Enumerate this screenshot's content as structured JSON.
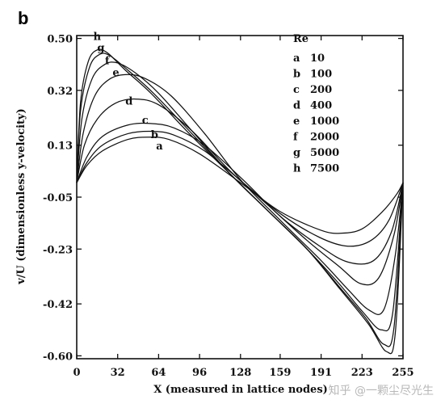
{
  "panel_label": "b",
  "watermark": "知乎 @一颗尘尽光生",
  "chart_data": {
    "type": "line",
    "xlabel": "X (measured in lattice nodes)",
    "ylabel": "v/U (dimensionless y-velocity)",
    "xlim": [
      0,
      255
    ],
    "ylim": [
      -0.61,
      0.51
    ],
    "x_ticks": [
      0,
      32,
      64,
      96,
      128,
      159,
      191,
      223,
      255
    ],
    "y_ticks": [
      0.5,
      0.32,
      0.13,
      -0.05,
      -0.23,
      -0.42,
      -0.6
    ],
    "y_tick_labels": [
      "0.50",
      "0.32",
      "0.13",
      "-0.05",
      "-0.23",
      "-0.42",
      "-0.60"
    ],
    "legend": {
      "title": "Re",
      "entries": [
        {
          "key": "a",
          "value": "10"
        },
        {
          "key": "b",
          "value": "100"
        },
        {
          "key": "c",
          "value": "200"
        },
        {
          "key": "d",
          "value": "400"
        },
        {
          "key": "e",
          "value": "1000"
        },
        {
          "key": "f",
          "value": "2000"
        },
        {
          "key": "g",
          "value": "5000"
        },
        {
          "key": "h",
          "value": "7500"
        }
      ]
    },
    "series": [
      {
        "name": "a",
        "points": [
          [
            0,
            0.0
          ],
          [
            8,
            0.06
          ],
          [
            20,
            0.11
          ],
          [
            40,
            0.15
          ],
          [
            56,
            0.158
          ],
          [
            72,
            0.15
          ],
          [
            96,
            0.1
          ],
          [
            128,
            0.0
          ],
          [
            159,
            -0.1
          ],
          [
            191,
            -0.165
          ],
          [
            207,
            -0.175
          ],
          [
            223,
            -0.16
          ],
          [
            239,
            -0.1
          ],
          [
            250,
            -0.04
          ],
          [
            255,
            0.0
          ]
        ]
      },
      {
        "name": "b",
        "points": [
          [
            0,
            0.0
          ],
          [
            8,
            0.07
          ],
          [
            20,
            0.13
          ],
          [
            40,
            0.17
          ],
          [
            60,
            0.178
          ],
          [
            76,
            0.165
          ],
          [
            100,
            0.11
          ],
          [
            130,
            0.0
          ],
          [
            160,
            -0.11
          ],
          [
            190,
            -0.19
          ],
          [
            212,
            -0.22
          ],
          [
            230,
            -0.2
          ],
          [
            244,
            -0.13
          ],
          [
            255,
            0.0
          ]
        ]
      },
      {
        "name": "c",
        "points": [
          [
            0,
            0.0
          ],
          [
            8,
            0.09
          ],
          [
            20,
            0.16
          ],
          [
            40,
            0.2
          ],
          [
            58,
            0.205
          ],
          [
            76,
            0.19
          ],
          [
            100,
            0.13
          ],
          [
            130,
            0.01
          ],
          [
            160,
            -0.12
          ],
          [
            190,
            -0.22
          ],
          [
            212,
            -0.275
          ],
          [
            232,
            -0.27
          ],
          [
            246,
            -0.17
          ],
          [
            255,
            0.0
          ]
        ]
      },
      {
        "name": "d",
        "points": [
          [
            0,
            0.0
          ],
          [
            6,
            0.13
          ],
          [
            16,
            0.22
          ],
          [
            30,
            0.275
          ],
          [
            46,
            0.29
          ],
          [
            64,
            0.27
          ],
          [
            90,
            0.18
          ],
          [
            120,
            0.04
          ],
          [
            150,
            -0.08
          ],
          [
            180,
            -0.2
          ],
          [
            205,
            -0.29
          ],
          [
            222,
            -0.35
          ],
          [
            236,
            -0.33
          ],
          [
            248,
            -0.18
          ],
          [
            255,
            0.0
          ]
        ]
      },
      {
        "name": "e",
        "points": [
          [
            0,
            0.0
          ],
          [
            5,
            0.17
          ],
          [
            14,
            0.3
          ],
          [
            26,
            0.36
          ],
          [
            40,
            0.375
          ],
          [
            54,
            0.36
          ],
          [
            74,
            0.3
          ],
          [
            100,
            0.17
          ],
          [
            128,
            0.01
          ],
          [
            159,
            -0.13
          ],
          [
            191,
            -0.27
          ],
          [
            212,
            -0.37
          ],
          [
            228,
            -0.44
          ],
          [
            240,
            -0.44
          ],
          [
            249,
            -0.25
          ],
          [
            255,
            0.0
          ]
        ]
      },
      {
        "name": "f",
        "points": [
          [
            0,
            0.0
          ],
          [
            4,
            0.22
          ],
          [
            12,
            0.36
          ],
          [
            22,
            0.41
          ],
          [
            32,
            0.415
          ],
          [
            46,
            0.38
          ],
          [
            64,
            0.31
          ],
          [
            90,
            0.18
          ],
          [
            120,
            0.03
          ],
          [
            150,
            -0.1
          ],
          [
            180,
            -0.23
          ],
          [
            205,
            -0.35
          ],
          [
            224,
            -0.45
          ],
          [
            238,
            -0.51
          ],
          [
            247,
            -0.45
          ],
          [
            255,
            0.0
          ]
        ]
      },
      {
        "name": "g",
        "points": [
          [
            0,
            0.0
          ],
          [
            3,
            0.25
          ],
          [
            10,
            0.4
          ],
          [
            18,
            0.445
          ],
          [
            26,
            0.44
          ],
          [
            40,
            0.39
          ],
          [
            60,
            0.31
          ],
          [
            90,
            0.17
          ],
          [
            120,
            0.03
          ],
          [
            150,
            -0.1
          ],
          [
            180,
            -0.23
          ],
          [
            205,
            -0.36
          ],
          [
            226,
            -0.47
          ],
          [
            240,
            -0.56
          ],
          [
            248,
            -0.5
          ],
          [
            255,
            0.0
          ]
        ]
      },
      {
        "name": "h",
        "points": [
          [
            0,
            0.0
          ],
          [
            3,
            0.28
          ],
          [
            9,
            0.42
          ],
          [
            16,
            0.46
          ],
          [
            24,
            0.45
          ],
          [
            38,
            0.39
          ],
          [
            58,
            0.31
          ],
          [
            88,
            0.17
          ],
          [
            120,
            0.03
          ],
          [
            150,
            -0.1
          ],
          [
            180,
            -0.23
          ],
          [
            206,
            -0.37
          ],
          [
            228,
            -0.49
          ],
          [
            242,
            -0.585
          ],
          [
            249,
            -0.52
          ],
          [
            255,
            0.0
          ]
        ]
      }
    ],
    "curve_labels": [
      {
        "series": "a",
        "at": [
          62,
          0.115
        ]
      },
      {
        "series": "b",
        "at": [
          58,
          0.155
        ]
      },
      {
        "series": "c",
        "at": [
          51,
          0.205
        ]
      },
      {
        "series": "d",
        "at": [
          38,
          0.27
        ]
      },
      {
        "series": "e",
        "at": [
          28,
          0.37
        ]
      },
      {
        "series": "f",
        "at": [
          22,
          0.41
        ]
      },
      {
        "series": "g",
        "at": [
          16,
          0.455
        ]
      },
      {
        "series": "h",
        "at": [
          13,
          0.495
        ]
      }
    ]
  }
}
